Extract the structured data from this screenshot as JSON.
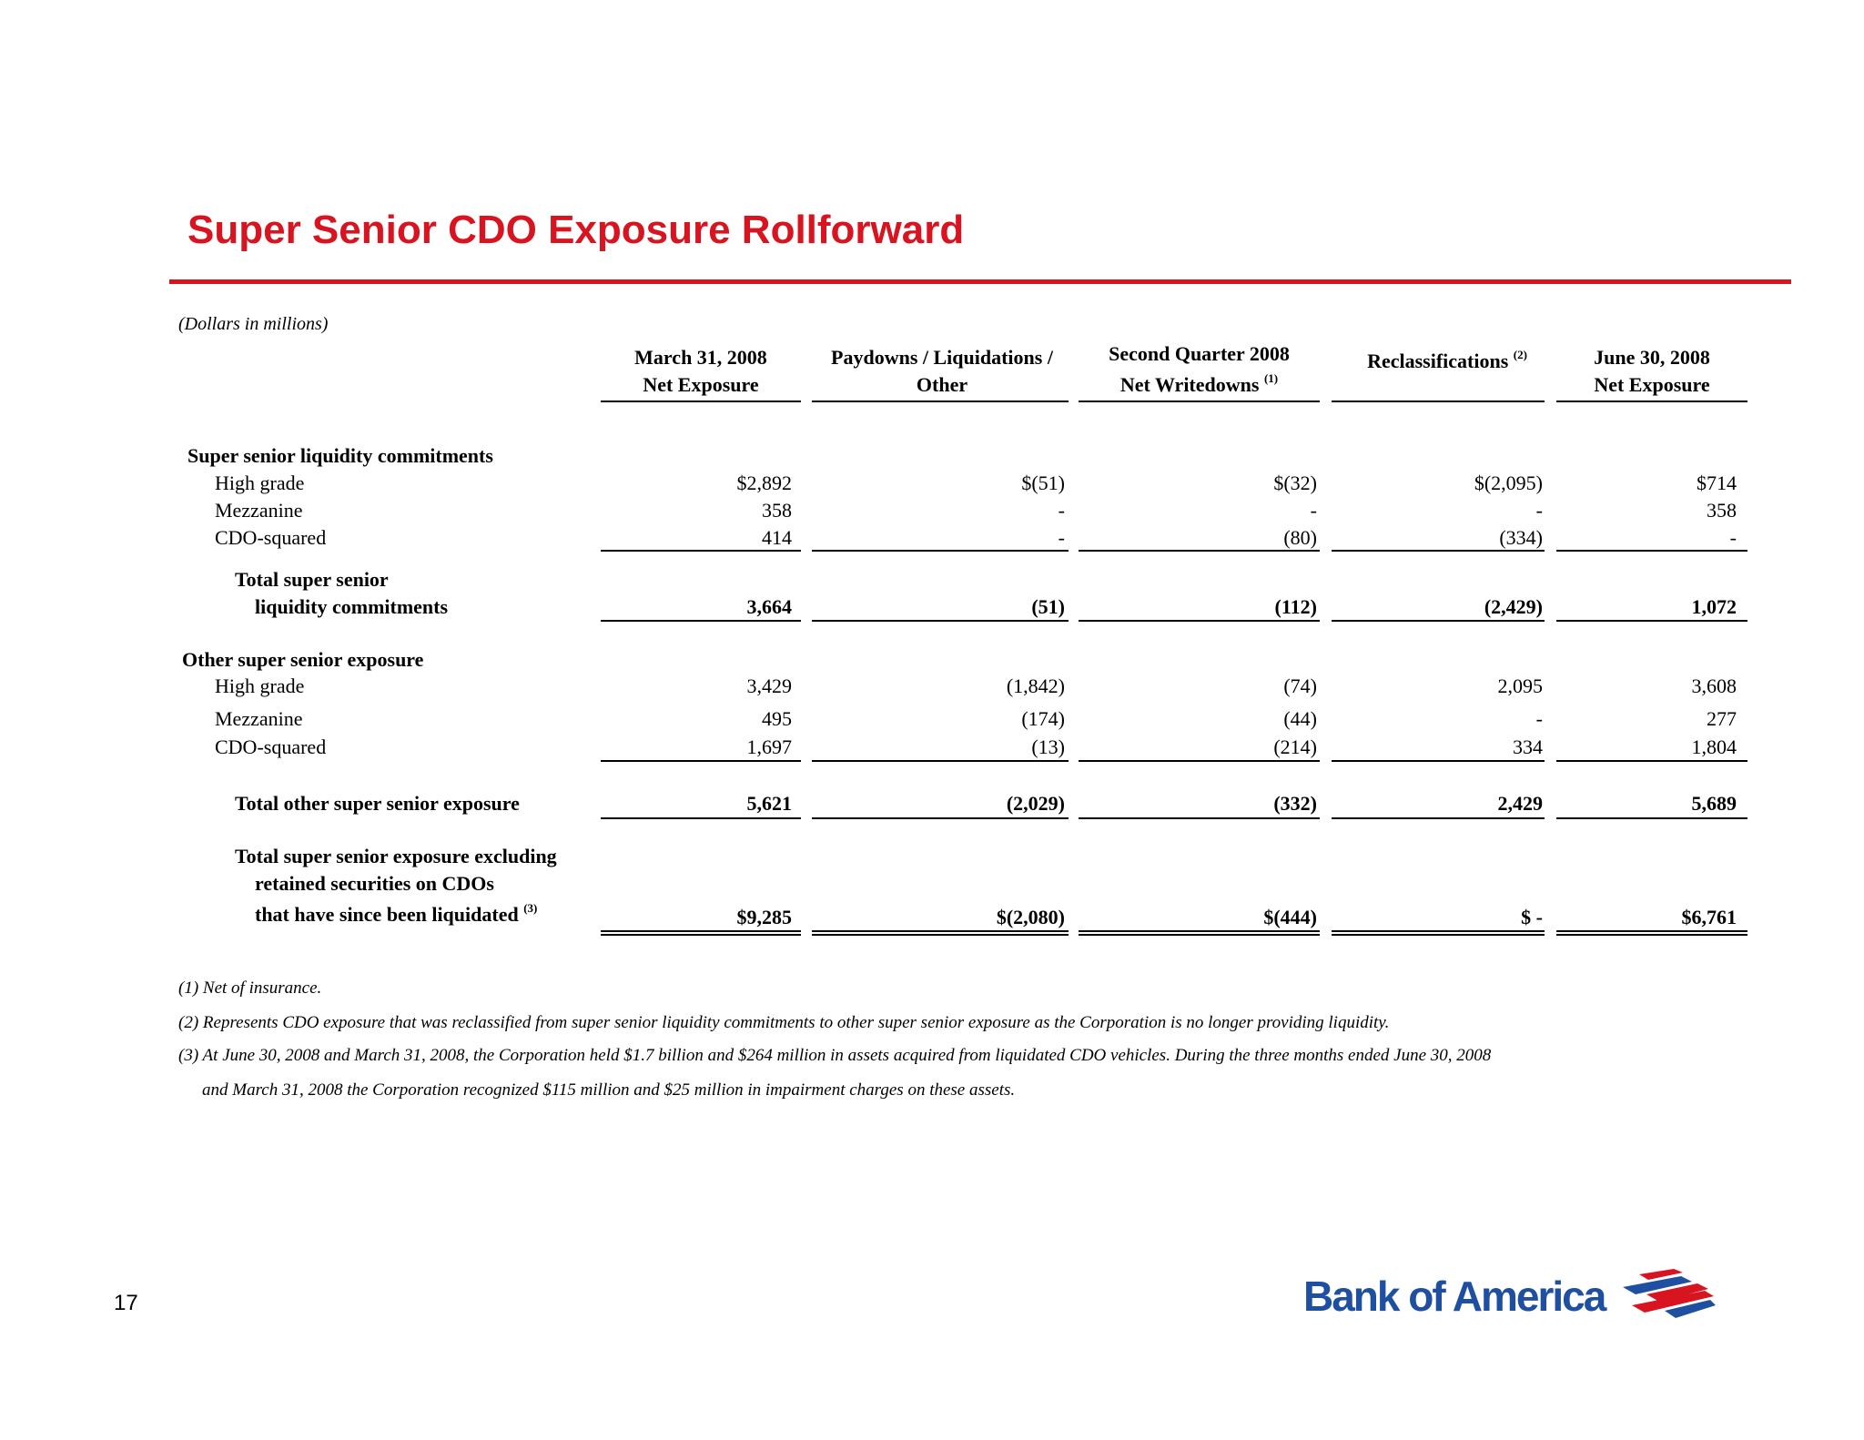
{
  "title": "Super Senior CDO Exposure Rollforward",
  "subtitle": "(Dollars in millions)",
  "columns": [
    {
      "line1": "March 31, 2008",
      "line2": "Net Exposure",
      "sup": ""
    },
    {
      "line1": "Paydowns / Liquidations /",
      "line2": "Other",
      "sup": ""
    },
    {
      "line1": "Second Quarter 2008",
      "line2": "Net Writedowns",
      "sup": "(1)"
    },
    {
      "line1": "",
      "line2": "Reclassifications",
      "sup": "(2)"
    },
    {
      "line1": "June 30, 2008",
      "line2": "Net Exposure",
      "sup": ""
    }
  ],
  "rows": [
    {
      "label": "Super senior liquidity commitments",
      "values": []
    },
    {
      "label": "High grade",
      "values": [
        "$2,892",
        "$(51)",
        "$(32)",
        "$(2,095)",
        "$714"
      ]
    },
    {
      "label": "Mezzanine",
      "values": [
        "358",
        "-",
        "-",
        "-",
        "358"
      ]
    },
    {
      "label": "CDO-squared",
      "values": [
        "414",
        "-",
        "(80)",
        "(334)",
        "-"
      ]
    },
    {
      "label": "Total super senior",
      "label2": "liquidity commitments",
      "values": [
        "3,664",
        "(51)",
        "(112)",
        "(2,429)",
        "1,072"
      ]
    },
    {
      "label": "Other super senior exposure",
      "values": []
    },
    {
      "label": "High grade",
      "values": [
        "3,429",
        "(1,842)",
        "(74)",
        "2,095",
        "3,608"
      ]
    },
    {
      "label": "Mezzanine",
      "values": [
        "495",
        "(174)",
        "(44)",
        "-",
        "277"
      ]
    },
    {
      "label": "CDO-squared",
      "values": [
        "1,697",
        "(13)",
        "(214)",
        "334",
        "1,804"
      ]
    },
    {
      "label": "Total other super senior exposure",
      "values": [
        "5,621",
        "(2,029)",
        "(332)",
        "2,429",
        "5,689"
      ]
    },
    {
      "label": "Total super senior exposure excluding",
      "label2": "retained securities on CDOs",
      "label3": "that have since been liquidated",
      "sup": "(3)",
      "values": [
        "$9,285",
        "$(2,080)",
        "$(444)",
        "$ -",
        "$6,761"
      ]
    }
  ],
  "footnotes": [
    "(1)  Net of insurance.",
    "(2) Represents CDO exposure that was reclassified from super senior liquidity commitments to other super senior exposure as the Corporation is no longer providing liquidity.",
    "(3) At June 30, 2008 and March 31, 2008, the Corporation held $1.7 billion and $264 million in assets acquired from liquidated CDO vehicles. During the three months ended June 30, 2008",
    "and March 31, 2008 the Corporation recognized $115 million and $25 million in impairment charges on these assets."
  ],
  "page_number": "17",
  "logo": {
    "text": "Bank of America",
    "icon": "bank-of-america-flag-logo",
    "text_color": "#1f4fa0",
    "accent_color": "#d7141f"
  }
}
